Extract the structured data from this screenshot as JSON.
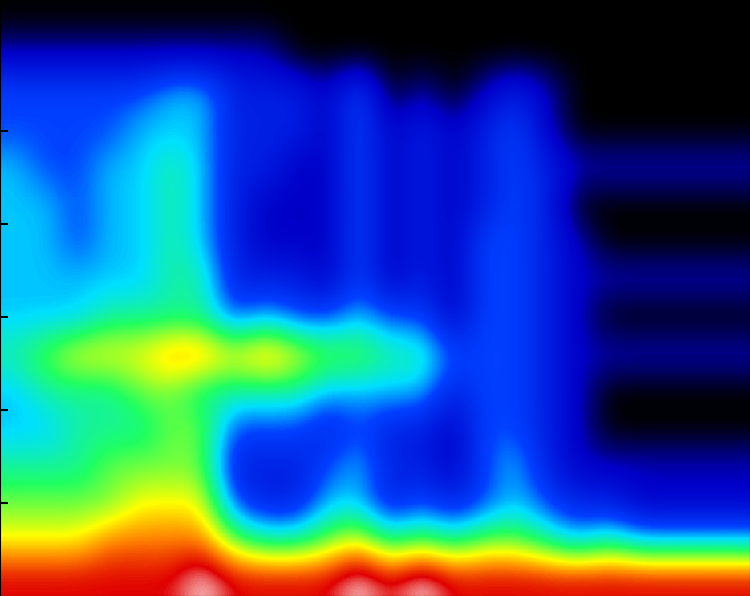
{
  "chart_data": {
    "type": "heatmap",
    "xlim": [
      0,
      24
    ],
    "ylim": [
      0,
      16
    ],
    "xticks": [],
    "yticks": [
      2.5,
      5,
      7.5,
      10,
      12.5
    ],
    "tick_labels": false,
    "color_range": [
      0,
      10
    ],
    "cells": [
      [
        0,
        0,
        0,
        0,
        0,
        0,
        0,
        0,
        0,
        0,
        0,
        0,
        0,
        0,
        0,
        0,
        0,
        0,
        0,
        0,
        0,
        0,
        0,
        0
      ],
      [
        1,
        1,
        1,
        1,
        1,
        1,
        1,
        1,
        1,
        0,
        0,
        0,
        0,
        0,
        0,
        0,
        0,
        0,
        0,
        0,
        0,
        0,
        0,
        0
      ],
      [
        3,
        3,
        3,
        3,
        3,
        4,
        4,
        2,
        2,
        2,
        1,
        3,
        0,
        1,
        0,
        1,
        2,
        1,
        0,
        0,
        0,
        0,
        0,
        0
      ],
      [
        3,
        3,
        3,
        3,
        4,
        4,
        4,
        2,
        2,
        2,
        1,
        3,
        1,
        2,
        1,
        2,
        3,
        1,
        0,
        0,
        0,
        0,
        0,
        0
      ],
      [
        4,
        3,
        3,
        4,
        4,
        5,
        4,
        2,
        2,
        1,
        1,
        3,
        1,
        2,
        1,
        2,
        3,
        2,
        1,
        1,
        1,
        1,
        1,
        1
      ],
      [
        4,
        4,
        3,
        4,
        4,
        5,
        4,
        2,
        1,
        1,
        1,
        3,
        1,
        2,
        1,
        2,
        3,
        2,
        0,
        0,
        0,
        0,
        0,
        0
      ],
      [
        4,
        4,
        3,
        4,
        4,
        5,
        4,
        2,
        1,
        1,
        1,
        3,
        1,
        2,
        1,
        3,
        3,
        2,
        1,
        0,
        0,
        0,
        0,
        0
      ],
      [
        4,
        4,
        4,
        4,
        4,
        5,
        5,
        2,
        2,
        2,
        1,
        3,
        1,
        2,
        1,
        3,
        3,
        2,
        1,
        1,
        1,
        1,
        1,
        1
      ],
      [
        4,
        4,
        4,
        5,
        5,
        5,
        5,
        3,
        4,
        3,
        3,
        4,
        3,
        3,
        1,
        3,
        3,
        2,
        1,
        0,
        0,
        0,
        0,
        0
      ],
      [
        5,
        6,
        7,
        7,
        7,
        8,
        8,
        7,
        8,
        7,
        6,
        6,
        5,
        5,
        3,
        3,
        3,
        2,
        1,
        1,
        1,
        1,
        1,
        1
      ],
      [
        4,
        5,
        5,
        5,
        6,
        6,
        5,
        5,
        5,
        5,
        4,
        4,
        4,
        4,
        2,
        3,
        3,
        2,
        1,
        0,
        0,
        0,
        0,
        0
      ],
      [
        4,
        4,
        5,
        5,
        5,
        6,
        6,
        3,
        3,
        3,
        2,
        3,
        2,
        2,
        1,
        3,
        3,
        2,
        1,
        0,
        0,
        0,
        0,
        0
      ],
      [
        5,
        5,
        5,
        6,
        6,
        6,
        6,
        2,
        2,
        2,
        3,
        4,
        2,
        2,
        1,
        3,
        4,
        2,
        1,
        1,
        1,
        1,
        1,
        1
      ],
      [
        6,
        6,
        6,
        6,
        7,
        7,
        7,
        3,
        2,
        2,
        4,
        4,
        2,
        3,
        2,
        3,
        4,
        3,
        2,
        2,
        1,
        1,
        1,
        1
      ],
      [
        7,
        7,
        7,
        8,
        8,
        8,
        8,
        6,
        5,
        5,
        6,
        7,
        5,
        6,
        5,
        6,
        6,
        5,
        4,
        5,
        4,
        4,
        4,
        4
      ],
      [
        9,
        9,
        9,
        9,
        9,
        9,
        10,
        9,
        9,
        9,
        9,
        10,
        9,
        10,
        9,
        9,
        9,
        9,
        9,
        9,
        9,
        9,
        9,
        9
      ]
    ]
  }
}
